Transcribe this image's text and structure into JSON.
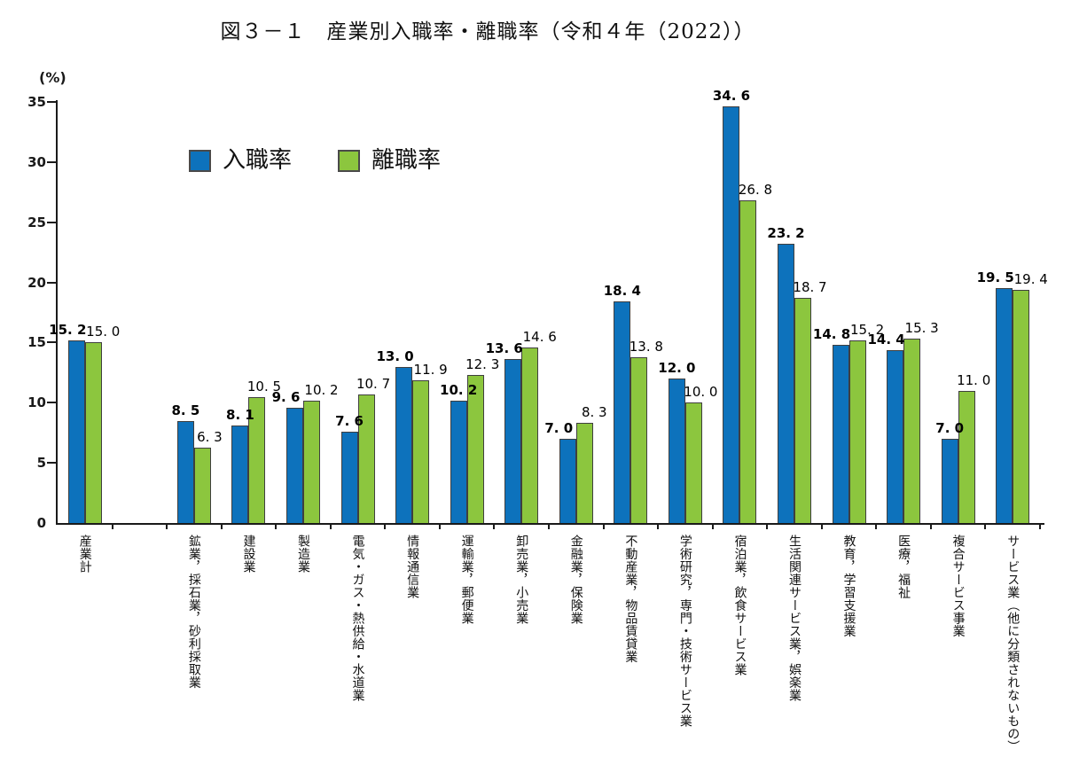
{
  "figure": {
    "background": "#FFFFFF",
    "title": "図３－１　産業別入職率・離職率（令和４年（2022））"
  },
  "chart_data": {
    "type": "bar",
    "title": "図３－１　産業別入職率・離職率（令和４年（2022））",
    "xlabel": "",
    "ylabel": "(%)",
    "ylim": [
      0,
      35
    ],
    "y_tick_step": 5,
    "y_tick_labels": [
      "0",
      "5",
      "10",
      "15",
      "20",
      "25",
      "30",
      "35"
    ],
    "grid": false,
    "legend_position": "inside-upper-left",
    "value_labels_shown": true,
    "bar_outline_color": "#3F3F3F",
    "axis_color": "#1A1A1A",
    "gap_slot_after_first_category": true,
    "categories": [
      "産業計",
      "鉱業，採石業，砂利採取業",
      "建設業",
      "製造業",
      "電気・ガス・熱供給・水道業",
      "情報通信業",
      "運輸業，郵便業",
      "卸売業，小売業",
      "金融業，保険業",
      "不動産業，物品賃貸業",
      "学術研究，専門・技術サービス業",
      "宿泊業，飲食サービス業",
      "生活関連サービス業，娯楽業",
      "教育，学習支援業",
      "医療，福祉",
      "複合サービス事業",
      "サービス業（他に分類されないもの）"
    ],
    "series": [
      {
        "name": "入職率",
        "color": "#0D72BC",
        "label_bold": true,
        "values": [
          15.2,
          8.5,
          8.1,
          9.6,
          7.6,
          13.0,
          10.2,
          13.6,
          7.0,
          18.4,
          12.0,
          34.6,
          23.2,
          14.8,
          14.4,
          7.0,
          19.5
        ]
      },
      {
        "name": "離職率",
        "color": "#8CC63E",
        "label_bold": false,
        "values": [
          15.0,
          6.3,
          10.5,
          10.2,
          10.7,
          11.9,
          12.3,
          14.6,
          8.3,
          13.8,
          10.0,
          26.8,
          18.7,
          15.2,
          15.3,
          11.0,
          19.4
        ]
      }
    ]
  }
}
